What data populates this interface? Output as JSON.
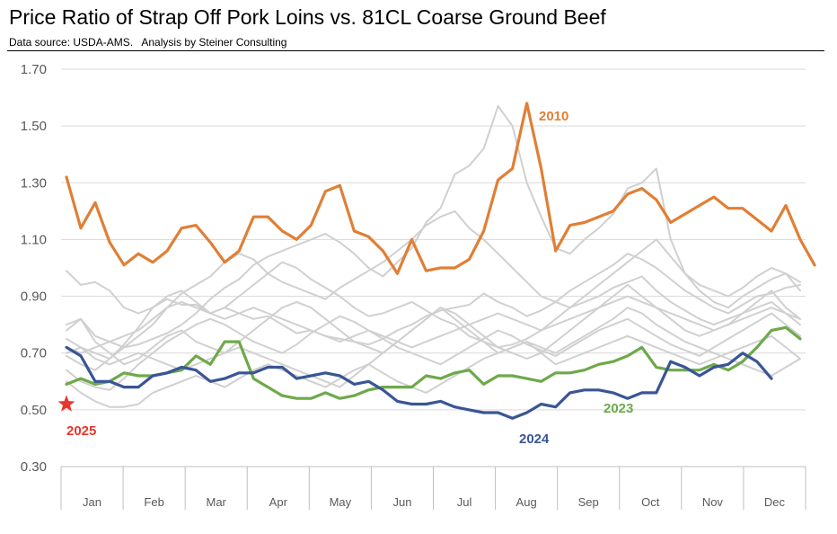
{
  "title": "Price Ratio of Strap Off Pork Loins vs. 81CL Coarse Ground Beef",
  "subtitle": "Data source: USDA-AMS.   Analysis by Steiner Consulting",
  "colors": {
    "y2010": "#E07F35",
    "y2023": "#6EA94A",
    "y2024": "#3A5596",
    "y2025": "#E8362C",
    "other": "#D0D0D0",
    "grid": "#D9D9D9",
    "axis": "#BFBFBF"
  },
  "chart_data": {
    "type": "line",
    "ylim": [
      0.3,
      1.7
    ],
    "yticks": [
      0.3,
      0.5,
      0.7,
      0.9,
      1.1,
      1.3,
      1.5,
      1.7
    ],
    "ytick_labels": [
      "0.30",
      "0.50",
      "0.70",
      "0.90",
      "1.10",
      "1.30",
      "1.50",
      "1.70"
    ],
    "months": [
      "Jan",
      "Feb",
      "Mar",
      "Apr",
      "May",
      "Jun",
      "Jul",
      "Aug",
      "Sep",
      "Oct",
      "Nov",
      "Dec"
    ],
    "weeks": 52,
    "series": [
      {
        "name": "2010",
        "color_key": "y2010",
        "highlight": true,
        "values": [
          1.32,
          1.14,
          1.23,
          1.09,
          1.01,
          1.05,
          1.02,
          1.06,
          1.14,
          1.15,
          1.09,
          1.02,
          1.06,
          1.18,
          1.18,
          1.13,
          1.1,
          1.15,
          1.27,
          1.29,
          1.13,
          1.11,
          1.06,
          0.98,
          1.1,
          0.99,
          1.0,
          1.0,
          1.03,
          1.13,
          1.31,
          1.35,
          1.58,
          1.35,
          1.06,
          1.15,
          1.16,
          1.18,
          1.2,
          1.26,
          1.28,
          1.24,
          1.16,
          1.19,
          1.22,
          1.25,
          1.21,
          1.21,
          1.17,
          1.13,
          1.22,
          1.1,
          1.01
        ]
      },
      {
        "name": "2023",
        "color_key": "y2023",
        "highlight": true,
        "values": [
          0.59,
          0.61,
          0.59,
          0.6,
          0.63,
          0.62,
          0.62,
          0.63,
          0.64,
          0.69,
          0.66,
          0.74,
          0.74,
          0.61,
          0.58,
          0.55,
          0.54,
          0.54,
          0.56,
          0.54,
          0.55,
          0.57,
          0.58,
          0.58,
          0.58,
          0.62,
          0.61,
          0.63,
          0.64,
          0.59,
          0.62,
          0.62,
          0.61,
          0.6,
          0.63,
          0.63,
          0.64,
          0.66,
          0.67,
          0.69,
          0.72,
          0.65,
          0.64,
          0.64,
          0.64,
          0.66,
          0.64,
          0.67,
          0.72,
          0.78,
          0.79,
          0.75
        ]
      },
      {
        "name": "2024",
        "color_key": "y2024",
        "highlight": true,
        "values": [
          0.72,
          0.69,
          0.6,
          0.6,
          0.58,
          0.58,
          0.62,
          0.63,
          0.65,
          0.64,
          0.6,
          0.61,
          0.63,
          0.63,
          0.65,
          0.65,
          0.61,
          0.62,
          0.63,
          0.62,
          0.59,
          0.6,
          0.57,
          0.53,
          0.52,
          0.52,
          0.53,
          0.51,
          0.5,
          0.49,
          0.49,
          0.47,
          0.49,
          0.52,
          0.51,
          0.56,
          0.57,
          0.57,
          0.56,
          0.54,
          0.56,
          0.56,
          0.67,
          0.65,
          0.62,
          0.65,
          0.66,
          0.7,
          0.67,
          0.61
        ]
      },
      {
        "name": "",
        "color_key": "other",
        "values": [
          0.99,
          0.94,
          0.95,
          0.92,
          0.86,
          0.84,
          0.86,
          0.89,
          0.87,
          0.87,
          0.84,
          0.86,
          0.84,
          0.82,
          0.83,
          0.8,
          0.77,
          0.78,
          0.76,
          0.75,
          0.74,
          0.73,
          0.75,
          0.78,
          0.8,
          0.83,
          0.85,
          0.86,
          0.87,
          0.91,
          0.88,
          0.86,
          0.83,
          0.85,
          0.88,
          0.92,
          0.95,
          0.98,
          1.01,
          1.05,
          1.03,
          1.0,
          0.96,
          0.92,
          0.89,
          0.86,
          0.84,
          0.87,
          0.9,
          0.91,
          0.93,
          0.94
        ]
      },
      {
        "name": "",
        "color_key": "other",
        "values": [
          0.8,
          0.82,
          0.76,
          0.74,
          0.72,
          0.73,
          0.75,
          0.77,
          0.8,
          0.84,
          0.89,
          0.93,
          0.96,
          1.01,
          1.04,
          1.06,
          1.08,
          1.1,
          1.12,
          1.09,
          1.05,
          1.0,
          0.97,
          1.02,
          1.07,
          1.16,
          1.21,
          1.33,
          1.36,
          1.42,
          1.57,
          1.5,
          1.3,
          1.18,
          1.07,
          1.05,
          1.1,
          1.14,
          1.19,
          1.28,
          1.3,
          1.35,
          1.1,
          0.98,
          0.92,
          0.88,
          0.86,
          0.9,
          0.93,
          0.96,
          0.98,
          0.95
        ]
      },
      {
        "name": "",
        "color_key": "other",
        "values": [
          0.75,
          0.72,
          0.7,
          0.68,
          0.72,
          0.76,
          0.8,
          0.86,
          0.91,
          0.94,
          0.97,
          1.02,
          1.05,
          1.03,
          0.98,
          0.95,
          0.93,
          0.91,
          0.89,
          0.93,
          0.96,
          0.99,
          1.02,
          1.06,
          1.1,
          1.15,
          1.18,
          1.2,
          1.14,
          1.1,
          1.05,
          1.0,
          0.95,
          0.9,
          0.88,
          0.86,
          0.9,
          0.94,
          0.98,
          1.02,
          1.06,
          1.1,
          1.04,
          0.98,
          0.94,
          0.92,
          0.9,
          0.93,
          0.97,
          1.0,
          0.98,
          0.92
        ]
      },
      {
        "name": "",
        "color_key": "other",
        "values": [
          0.69,
          0.66,
          0.64,
          0.68,
          0.73,
          0.79,
          0.86,
          0.9,
          0.92,
          0.88,
          0.84,
          0.86,
          0.9,
          0.94,
          0.98,
          1.02,
          1.0,
          0.96,
          0.93,
          0.9,
          0.86,
          0.83,
          0.84,
          0.86,
          0.88,
          0.85,
          0.82,
          0.8,
          0.76,
          0.74,
          0.72,
          0.73,
          0.75,
          0.78,
          0.82,
          0.86,
          0.88,
          0.9,
          0.93,
          0.95,
          0.97,
          0.92,
          0.88,
          0.85,
          0.82,
          0.8,
          0.82,
          0.84,
          0.86,
          0.88,
          0.84,
          0.8
        ]
      },
      {
        "name": "",
        "color_key": "other",
        "values": [
          0.78,
          0.82,
          0.74,
          0.7,
          0.66,
          0.68,
          0.72,
          0.76,
          0.78,
          0.74,
          0.72,
          0.7,
          0.74,
          0.78,
          0.82,
          0.86,
          0.88,
          0.86,
          0.82,
          0.78,
          0.74,
          0.72,
          0.7,
          0.74,
          0.78,
          0.82,
          0.86,
          0.84,
          0.8,
          0.76,
          0.72,
          0.7,
          0.68,
          0.7,
          0.74,
          0.78,
          0.82,
          0.86,
          0.9,
          0.94,
          0.9,
          0.86,
          0.82,
          0.78,
          0.76,
          0.78,
          0.8,
          0.84,
          0.88,
          0.92,
          0.86,
          0.82
        ]
      },
      {
        "name": "",
        "color_key": "other",
        "values": [
          0.64,
          0.6,
          0.58,
          0.57,
          0.61,
          0.66,
          0.7,
          0.74,
          0.77,
          0.8,
          0.82,
          0.8,
          0.77,
          0.74,
          0.72,
          0.7,
          0.73,
          0.77,
          0.8,
          0.83,
          0.81,
          0.78,
          0.75,
          0.72,
          0.7,
          0.68,
          0.66,
          0.69,
          0.72,
          0.75,
          0.78,
          0.76,
          0.73,
          0.71,
          0.69,
          0.72,
          0.75,
          0.78,
          0.8,
          0.82,
          0.79,
          0.76,
          0.73,
          0.71,
          0.69,
          0.72,
          0.75,
          0.78,
          0.81,
          0.84,
          0.8,
          0.76
        ]
      },
      {
        "name": "",
        "color_key": "other",
        "values": [
          0.6,
          0.56,
          0.53,
          0.51,
          0.51,
          0.52,
          0.56,
          0.58,
          0.6,
          0.62,
          0.6,
          0.58,
          0.61,
          0.64,
          0.66,
          0.64,
          0.62,
          0.6,
          0.58,
          0.61,
          0.64,
          0.66,
          0.63,
          0.6,
          0.58,
          0.56,
          0.59,
          0.62,
          0.65,
          0.68,
          0.7,
          0.72,
          0.74,
          0.72,
          0.7,
          0.73,
          0.76,
          0.79,
          0.82,
          0.86,
          0.84,
          0.8,
          0.77,
          0.74,
          0.72,
          0.7,
          0.68,
          0.66,
          0.64,
          0.62,
          0.65,
          0.68
        ]
      },
      {
        "name": "",
        "color_key": "other",
        "values": [
          0.7,
          0.72,
          0.68,
          0.66,
          0.68,
          0.7,
          0.68,
          0.66,
          0.64,
          0.66,
          0.68,
          0.7,
          0.72,
          0.7,
          0.68,
          0.66,
          0.64,
          0.62,
          0.6,
          0.58,
          0.62,
          0.66,
          0.7,
          0.74,
          0.78,
          0.82,
          0.86,
          0.82,
          0.78,
          0.74,
          0.7,
          0.72,
          0.74,
          0.7,
          0.66,
          0.68,
          0.7,
          0.72,
          0.74,
          0.76,
          0.74,
          0.72,
          0.7,
          0.68,
          0.66,
          0.68,
          0.7,
          0.72,
          0.74,
          0.76,
          0.72,
          0.68
        ]
      },
      {
        "name": "",
        "color_key": "other",
        "values": [
          0.72,
          0.7,
          0.72,
          0.74,
          0.76,
          0.78,
          0.82,
          0.86,
          0.88,
          0.86,
          0.84,
          0.82,
          0.84,
          0.86,
          0.84,
          0.82,
          0.8,
          0.78,
          0.76,
          0.74,
          0.76,
          0.78,
          0.76,
          0.74,
          0.72,
          0.74,
          0.76,
          0.78,
          0.8,
          0.82,
          0.84,
          0.82,
          0.8,
          0.78,
          0.8,
          0.82,
          0.84,
          0.86,
          0.88,
          0.9,
          0.88,
          0.86,
          0.84,
          0.82,
          0.8,
          0.78,
          0.8,
          0.82,
          0.84,
          0.86,
          0.84,
          0.82
        ]
      }
    ]
  },
  "labels": {
    "y2010": "2010",
    "y2023": "2023",
    "y2024": "2024",
    "y2025": "2025"
  },
  "point_2025": {
    "week": 0,
    "value": 0.52
  }
}
